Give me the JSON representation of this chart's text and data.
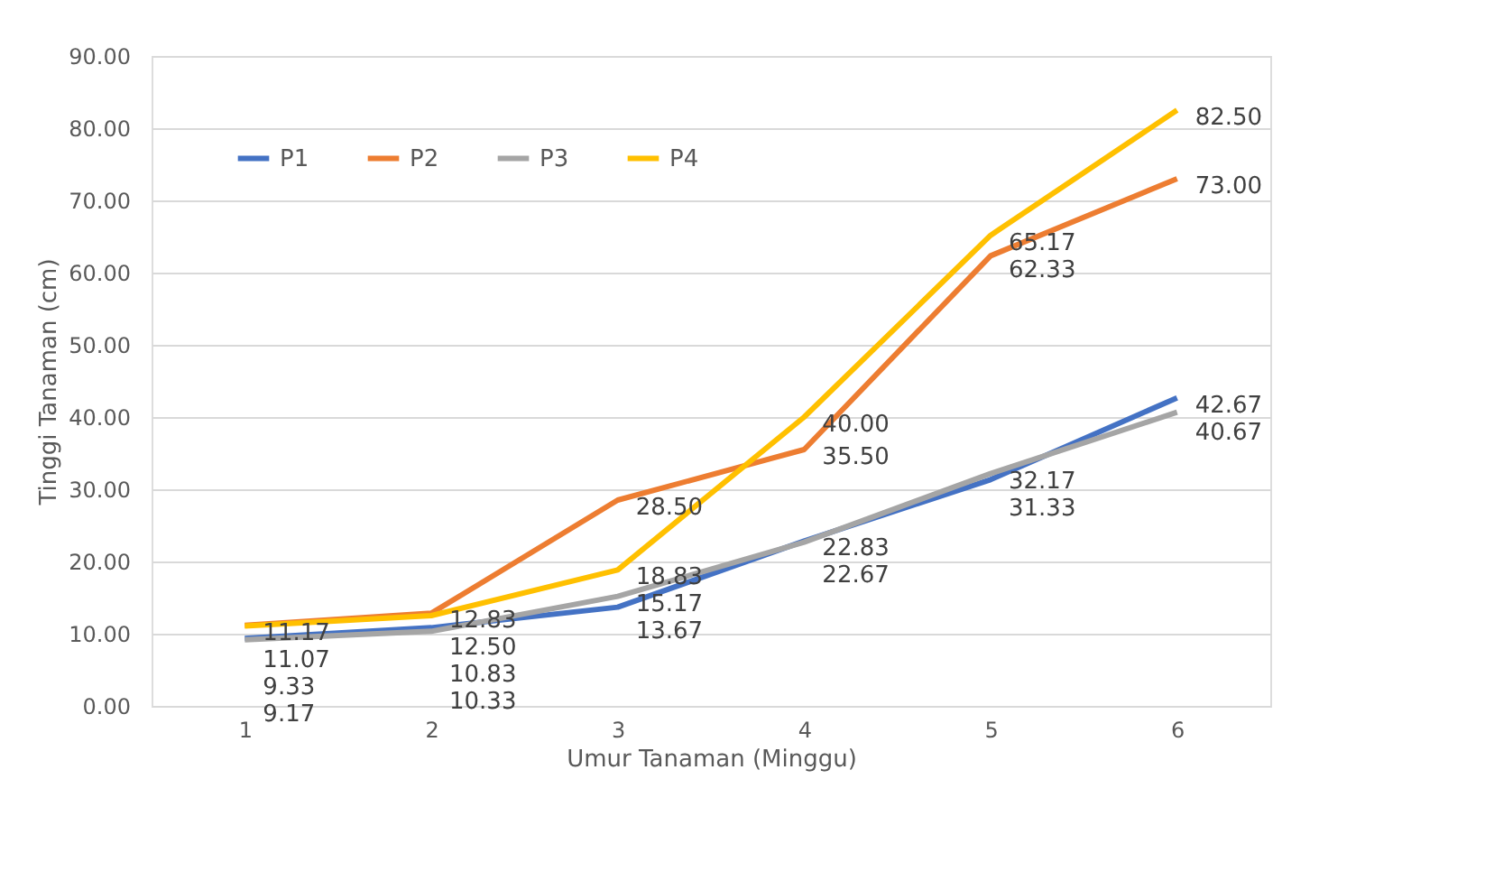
{
  "chart_data": {
    "type": "line",
    "xlabel": "Umur Tanaman (Minggu)",
    "ylabel": "Tinggi Tanaman (cm)",
    "categories": [
      "1",
      "2",
      "3",
      "4",
      "5",
      "6"
    ],
    "series": [
      {
        "name": "P1",
        "color": "#4472c4",
        "values": [
          9.33,
          10.83,
          13.67,
          22.83,
          31.33,
          42.67
        ],
        "value_labels": [
          "9.33",
          "10.83",
          "13.67",
          "22.83",
          "31.33",
          "42.67"
        ]
      },
      {
        "name": "P2",
        "color": "#ed7d31",
        "values": [
          11.17,
          12.83,
          28.5,
          35.5,
          62.33,
          73.0
        ],
        "value_labels": [
          "11.17",
          "12.83",
          "28.50",
          "35.50",
          "62.33",
          "73.00"
        ]
      },
      {
        "name": "P3",
        "color": "#a5a5a5",
        "values": [
          9.17,
          10.33,
          15.17,
          22.67,
          32.17,
          40.67
        ],
        "value_labels": [
          "9.17",
          "10.33",
          "15.17",
          "22.67",
          "32.17",
          "40.67"
        ]
      },
      {
        "name": "P4",
        "color": "#ffc000",
        "values": [
          11.07,
          12.5,
          18.83,
          40.0,
          65.17,
          82.5
        ],
        "value_labels": [
          "11.07",
          "12.50",
          "18.83",
          "40.00",
          "65.17",
          "82.50"
        ]
      }
    ],
    "ylim": [
      0,
      90
    ],
    "yticks": [
      {
        "value": 0,
        "label": "0.00"
      },
      {
        "value": 10,
        "label": "10.00"
      },
      {
        "value": 20,
        "label": "20.00"
      },
      {
        "value": 30,
        "label": "30.00"
      },
      {
        "value": 40,
        "label": "40.00"
      },
      {
        "value": 50,
        "label": "50.00"
      },
      {
        "value": 60,
        "label": "60.00"
      },
      {
        "value": 70,
        "label": "70.00"
      },
      {
        "value": 80,
        "label": "80.00"
      },
      {
        "value": 90,
        "label": "90.00"
      }
    ],
    "grid": "y",
    "legend": "top left",
    "marker": "none",
    "line_style": "solid"
  }
}
